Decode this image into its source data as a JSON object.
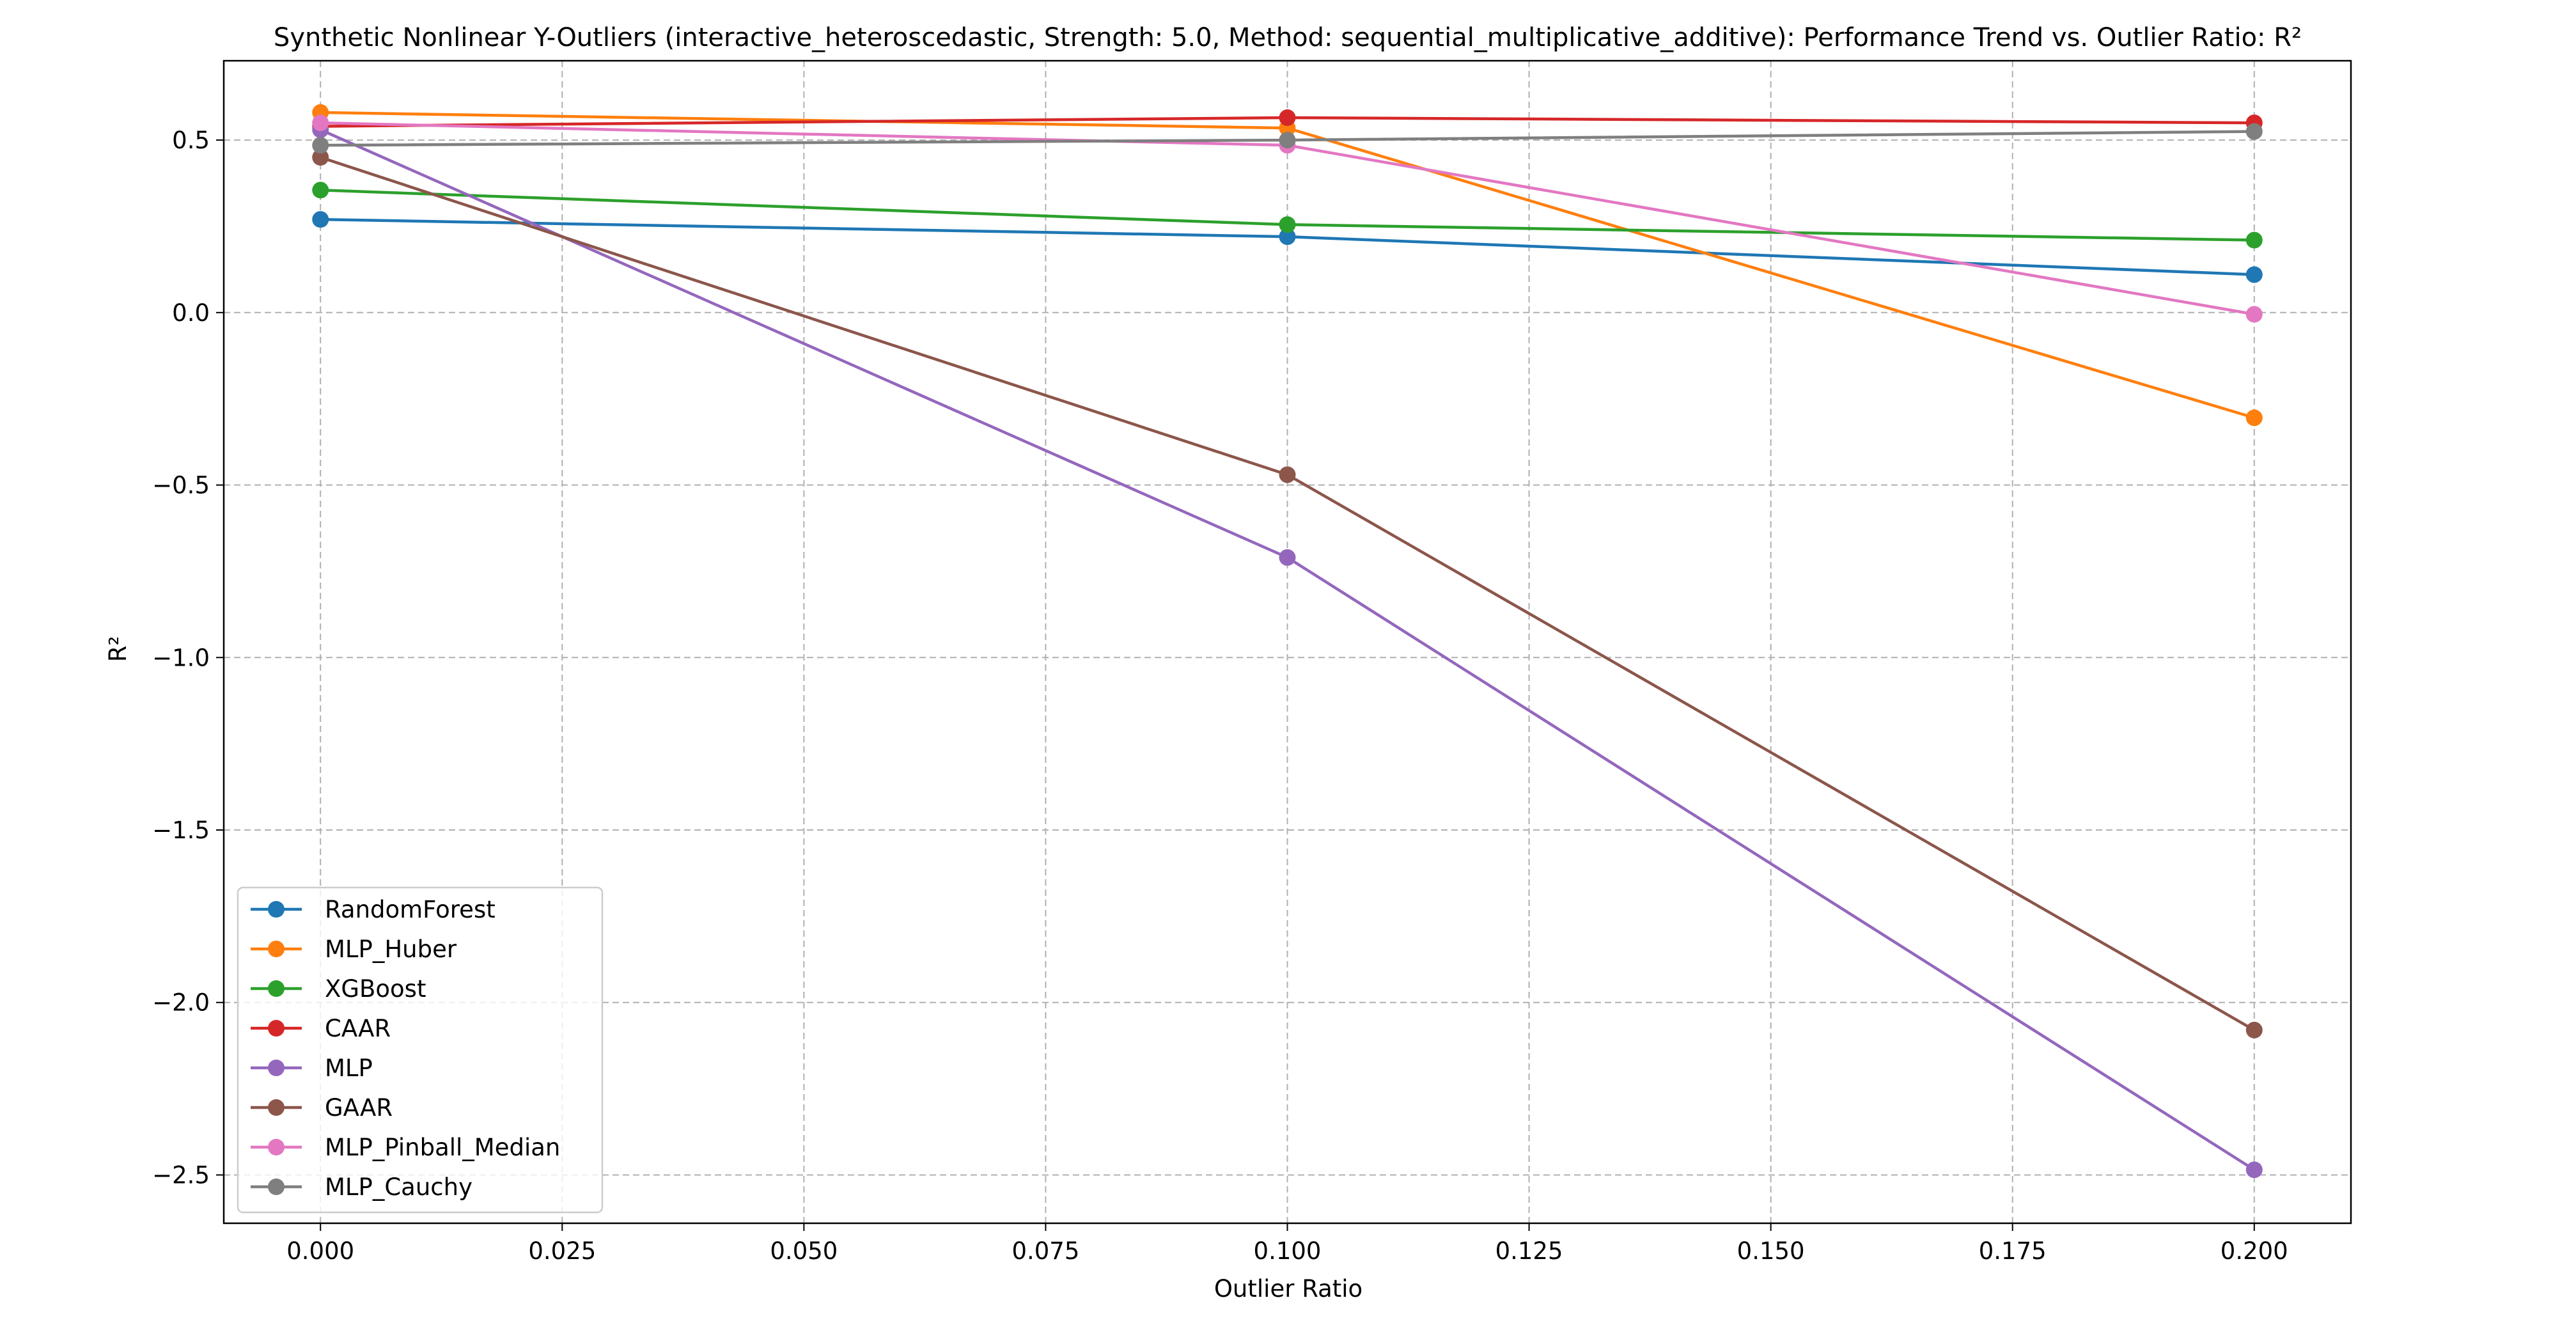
{
  "chart_data": {
    "type": "line",
    "title": "Synthetic Nonlinear Y-Outliers (interactive_heteroscedastic, Strength: 5.0, Method: sequential_multiplicative_additive): Performance Trend vs. Outlier Ratio: R²",
    "xlabel": "Outlier Ratio",
    "ylabel": "R²",
    "x": [
      0.0,
      0.1,
      0.2
    ],
    "xlim": [
      -0.01,
      0.21
    ],
    "ylim": [
      -2.64,
      0.73
    ],
    "xticks": [
      0.0,
      0.025,
      0.05,
      0.075,
      0.1,
      0.125,
      0.15,
      0.175,
      0.2
    ],
    "xtick_labels": [
      "0.000",
      "0.025",
      "0.050",
      "0.075",
      "0.100",
      "0.125",
      "0.150",
      "0.175",
      "0.200"
    ],
    "yticks": [
      0.5,
      0.0,
      -0.5,
      -1.0,
      -1.5,
      -2.0,
      -2.5
    ],
    "ytick_labels": [
      "0.5",
      "0.0",
      "−0.5",
      "−1.0",
      "−1.5",
      "−2.0",
      "−2.5"
    ],
    "grid": true,
    "legend_position": "lower-left",
    "series": [
      {
        "name": "RandomForest",
        "color": "#1f77b4",
        "values": [
          0.27,
          0.22,
          0.11
        ]
      },
      {
        "name": "MLP_Huber",
        "color": "#ff7f0e",
        "values": [
          0.58,
          0.535,
          -0.305
        ]
      },
      {
        "name": "XGBoost",
        "color": "#2ca02c",
        "values": [
          0.355,
          0.255,
          0.21
        ]
      },
      {
        "name": "CAAR",
        "color": "#d62728",
        "values": [
          0.54,
          0.565,
          0.55
        ]
      },
      {
        "name": "MLP",
        "color": "#9467bd",
        "values": [
          0.53,
          -0.71,
          -2.485
        ]
      },
      {
        "name": "GAAR",
        "color": "#8c564b",
        "values": [
          0.45,
          -0.47,
          -2.08
        ]
      },
      {
        "name": "MLP_Pinball_Median",
        "color": "#e377c2",
        "values": [
          0.55,
          0.485,
          -0.005
        ]
      },
      {
        "name": "MLP_Cauchy",
        "color": "#7f7f7f",
        "values": [
          0.485,
          0.5,
          0.525
        ]
      }
    ]
  }
}
